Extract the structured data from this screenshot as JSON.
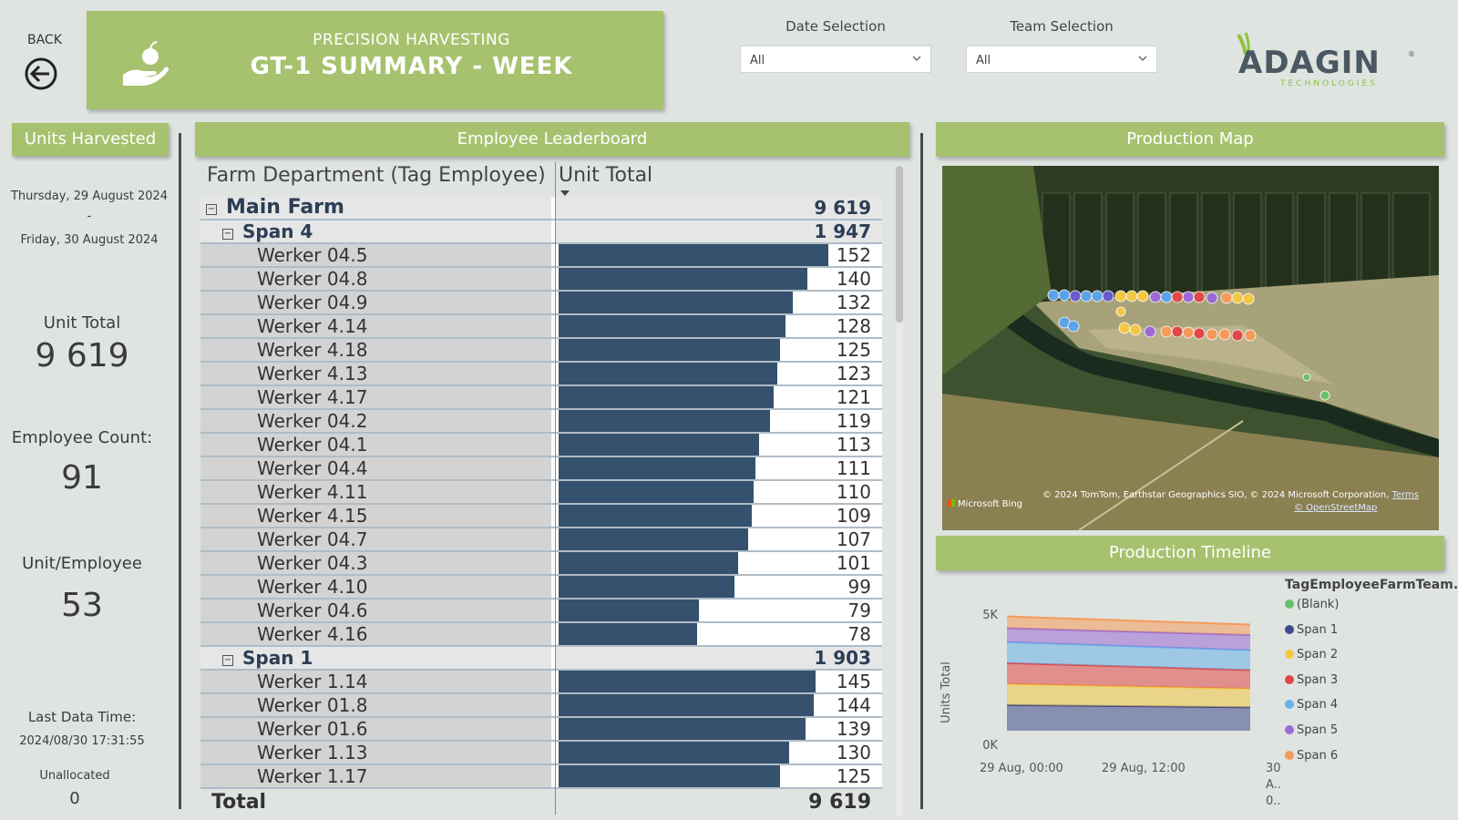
{
  "nav": {
    "back_label": "BACK",
    "back_icon": "arrow-left-circle-icon"
  },
  "title": {
    "subtitle": "PRECISION HARVESTING",
    "main": "GT-1 SUMMARY - WEEK",
    "icon": "hand-with-fruit-icon"
  },
  "filters": {
    "date": {
      "label": "Date Selection",
      "value": "All"
    },
    "team": {
      "label": "Team Selection",
      "value": "All"
    }
  },
  "logo": {
    "text": "ADAGIN",
    "sub": "TECHNOLOGIES"
  },
  "left": {
    "header": "Units Harvested",
    "date_from": "Thursday, 29 August 2024",
    "date_sep": "-",
    "date_to": "Friday, 30 August 2024",
    "unit_total_label": "Unit Total",
    "unit_total_value": "9 619",
    "employee_count_label": "Employee Count:",
    "employee_count_value": "91",
    "unit_per_employee_label": "Unit/Employee",
    "unit_per_employee_value": "53",
    "last_data_label": "Last Data Time:",
    "last_data_value": "2024/08/30 17:31:55",
    "unallocated_label": "Unallocated",
    "unallocated_value": "0"
  },
  "leaderboard": {
    "header": "Employee Leaderboard",
    "col_name": "Farm Department (Tag Employee)",
    "col_value": "Unit Total",
    "max_value": 152,
    "rows": [
      {
        "type": "group",
        "level": 0,
        "name": "Main Farm",
        "value": "9 619"
      },
      {
        "type": "group",
        "level": 1,
        "name": "Span 4",
        "value": "1 947"
      },
      {
        "type": "item",
        "name": "Werker 04.5",
        "value": 152
      },
      {
        "type": "item",
        "name": "Werker 04.8",
        "value": 140
      },
      {
        "type": "item",
        "name": "Werker 04.9",
        "value": 132
      },
      {
        "type": "item",
        "name": "Werker 4.14",
        "value": 128
      },
      {
        "type": "item",
        "name": "Werker 4.18",
        "value": 125
      },
      {
        "type": "item",
        "name": "Werker 4.13",
        "value": 123
      },
      {
        "type": "item",
        "name": "Werker 4.17",
        "value": 121
      },
      {
        "type": "item",
        "name": "Werker 04.2",
        "value": 119
      },
      {
        "type": "item",
        "name": "Werker 04.1",
        "value": 113
      },
      {
        "type": "item",
        "name": "Werker 04.4",
        "value": 111
      },
      {
        "type": "item",
        "name": "Werker 4.11",
        "value": 110
      },
      {
        "type": "item",
        "name": "Werker 4.15",
        "value": 109
      },
      {
        "type": "item",
        "name": "Werker 04.7",
        "value": 107
      },
      {
        "type": "item",
        "name": "Werker 04.3",
        "value": 101
      },
      {
        "type": "item",
        "name": "Werker 4.10",
        "value": 99
      },
      {
        "type": "item",
        "name": "Werker 04.6",
        "value": 79
      },
      {
        "type": "item",
        "name": "Werker 4.16",
        "value": 78
      },
      {
        "type": "group",
        "level": 1,
        "name": "Span 1",
        "value": "1 903"
      },
      {
        "type": "item",
        "name": "Werker 1.14",
        "value": 145
      },
      {
        "type": "item",
        "name": "Werker 01.8",
        "value": 144
      },
      {
        "type": "item",
        "name": "Werker 01.6",
        "value": 139
      },
      {
        "type": "item",
        "name": "Werker 1.13",
        "value": 130
      },
      {
        "type": "item",
        "name": "Werker 1.17",
        "value": 125
      }
    ],
    "total_label": "Total",
    "total_value": "9 619"
  },
  "map": {
    "header": "Production Map",
    "attribution": "© 2024 TomTom, Earthstar Geographics SIO, © 2024 Microsoft Corporation,",
    "terms": "Terms",
    "osm": "© OpenStreetMap",
    "brand": "Microsoft Bing"
  },
  "timeline": {
    "header": "Production Timeline",
    "legend_title": "TagEmployeeFarmTeam...",
    "ylabel": "Units Total",
    "yticks": [
      "5K",
      "0K"
    ],
    "xticks": [
      "29 Aug, 00:00",
      "29 Aug, 12:00",
      "30 A... 0..."
    ],
    "legend": [
      {
        "name": "(Blank)",
        "color": "#6cc06a"
      },
      {
        "name": "Span 1",
        "color": "#3f4a8a"
      },
      {
        "name": "Span 2",
        "color": "#f2c744"
      },
      {
        "name": "Span 3",
        "color": "#e04848"
      },
      {
        "name": "Span 4",
        "color": "#6ab0e8"
      },
      {
        "name": "Span 5",
        "color": "#9b6ad6"
      },
      {
        "name": "Span 6",
        "color": "#f59a5a"
      }
    ]
  },
  "chart_data": {
    "type": "area",
    "title": "Production Timeline",
    "ylabel": "Units Total",
    "xlabel": "",
    "x": [
      "29 Aug, 00:00",
      "30 Aug, 00:00"
    ],
    "ylim": [
      0,
      5000
    ],
    "legend_title": "TagEmployeeFarmTeam...",
    "stacked": true,
    "series": [
      {
        "name": "(Blank)",
        "values": [
          0,
          0
        ]
      },
      {
        "name": "Span 1",
        "values": [
          1100,
          1000
        ]
      },
      {
        "name": "Span 2",
        "values": [
          900,
          800
        ]
      },
      {
        "name": "Span 3",
        "values": [
          900,
          800
        ]
      },
      {
        "name": "Span 4",
        "values": [
          900,
          850
        ]
      },
      {
        "name": "Span 5",
        "values": [
          600,
          650
        ]
      },
      {
        "name": "Span 6",
        "values": [
          500,
          450
        ]
      }
    ]
  }
}
